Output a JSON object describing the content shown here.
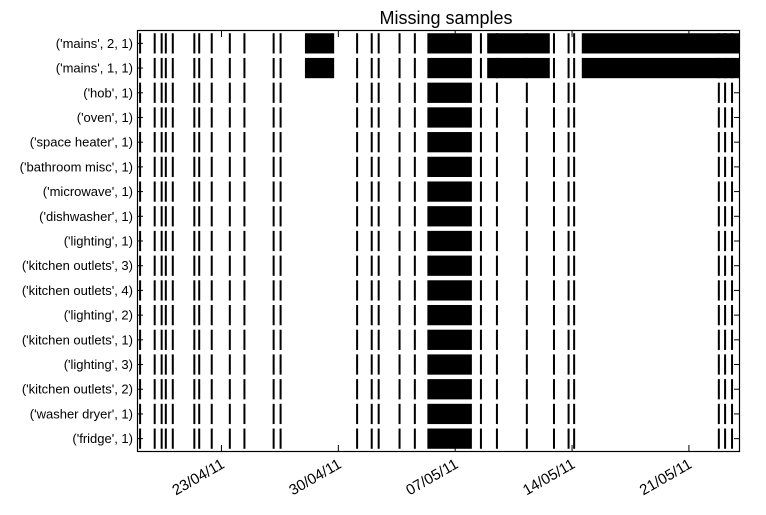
{
  "chart_data": {
    "type": "timeline",
    "title": "Missing samples",
    "xlabel": "",
    "ylabel": "",
    "x_range": [
      "2011-04-18",
      "2011-05-24"
    ],
    "x_tick_labels": [
      "23/04/11",
      "30/04/11",
      "07/05/11",
      "14/05/11",
      "21/05/11"
    ],
    "x_tick_dates": [
      "2011-04-23",
      "2011-04-30",
      "2011-05-07",
      "2011-05-14",
      "2011-05-21"
    ],
    "grid": false,
    "fill_color": "#000000",
    "series": [
      {
        "name": "('mains', 2, 1)",
        "gaps": [
          [
            "2011-04-28 00:00",
            "2011-04-29 18:00"
          ],
          [
            "2011-05-05 08:00",
            "2011-05-08 00:00"
          ],
          [
            "2011-05-08 22:00",
            "2011-05-12 16:00"
          ],
          [
            "2011-05-14 14:00",
            "2011-05-24 00:00"
          ]
        ]
      },
      {
        "name": "('mains', 1, 1)",
        "gaps": [
          [
            "2011-04-28 00:00",
            "2011-04-29 18:00"
          ],
          [
            "2011-05-05 08:00",
            "2011-05-08 00:00"
          ],
          [
            "2011-05-08 22:00",
            "2011-05-12 16:00"
          ],
          [
            "2011-05-14 14:00",
            "2011-05-24 00:00"
          ]
        ]
      },
      {
        "name": "('hob', 1)",
        "gaps": [
          [
            "2011-05-05 08:00",
            "2011-05-08 00:00"
          ]
        ]
      },
      {
        "name": "('oven', 1)",
        "gaps": [
          [
            "2011-05-05 08:00",
            "2011-05-08 00:00"
          ]
        ]
      },
      {
        "name": "('space heater', 1)",
        "gaps": [
          [
            "2011-05-05 08:00",
            "2011-05-08 00:00"
          ]
        ]
      },
      {
        "name": "('bathroom misc', 1)",
        "gaps": [
          [
            "2011-05-05 08:00",
            "2011-05-08 00:00"
          ]
        ]
      },
      {
        "name": "('microwave', 1)",
        "gaps": [
          [
            "2011-05-05 08:00",
            "2011-05-08 00:00"
          ]
        ]
      },
      {
        "name": "('dishwasher', 1)",
        "gaps": [
          [
            "2011-05-05 08:00",
            "2011-05-08 00:00"
          ]
        ]
      },
      {
        "name": "('lighting', 1)",
        "gaps": [
          [
            "2011-05-05 08:00",
            "2011-05-08 00:00"
          ]
        ]
      },
      {
        "name": "('kitchen outlets', 3)",
        "gaps": [
          [
            "2011-05-05 08:00",
            "2011-05-08 00:00"
          ]
        ]
      },
      {
        "name": "('kitchen outlets', 4)",
        "gaps": [
          [
            "2011-05-05 08:00",
            "2011-05-08 00:00"
          ]
        ]
      },
      {
        "name": "('lighting', 2)",
        "gaps": [
          [
            "2011-05-05 08:00",
            "2011-05-08 00:00"
          ]
        ]
      },
      {
        "name": "('kitchen outlets', 1)",
        "gaps": [
          [
            "2011-05-05 08:00",
            "2011-05-08 00:00"
          ]
        ]
      },
      {
        "name": "('lighting', 3)",
        "gaps": [
          [
            "2011-05-05 08:00",
            "2011-05-08 00:00"
          ]
        ]
      },
      {
        "name": "('kitchen outlets', 2)",
        "gaps": [
          [
            "2011-05-05 08:00",
            "2011-05-08 00:00"
          ]
        ]
      },
      {
        "name": "('washer dryer', 1)",
        "gaps": [
          [
            "2011-05-05 08:00",
            "2011-05-08 00:00"
          ]
        ]
      },
      {
        "name": "('fridge', 1)",
        "gaps": [
          [
            "2011-05-05 08:00",
            "2011-05-08 00:00"
          ]
        ]
      }
    ],
    "short_gaps_all_series": [
      "2011-04-18 03:00",
      "2011-04-19 00:00",
      "2011-04-19 10:00",
      "2011-04-19 16:00",
      "2011-04-20 02:00",
      "2011-04-21 09:00",
      "2011-04-21 16:00",
      "2011-04-22 10:00",
      "2011-04-23 12:00",
      "2011-04-24 09:00",
      "2011-04-26 03:00",
      "2011-04-26 13:00",
      "2011-05-01 03:00",
      "2011-05-02 00:00",
      "2011-05-02 10:00",
      "2011-05-03 16:00",
      "2011-05-04 14:00",
      "2011-05-08 13:00",
      "2011-05-09 12:00",
      "2011-05-11 07:00",
      "2011-05-12 22:00",
      "2011-05-13 19:00",
      "2011-05-14 03:00",
      "2011-05-22 19:00",
      "2011-05-23 04:00",
      "2011-05-23 14:00"
    ]
  }
}
